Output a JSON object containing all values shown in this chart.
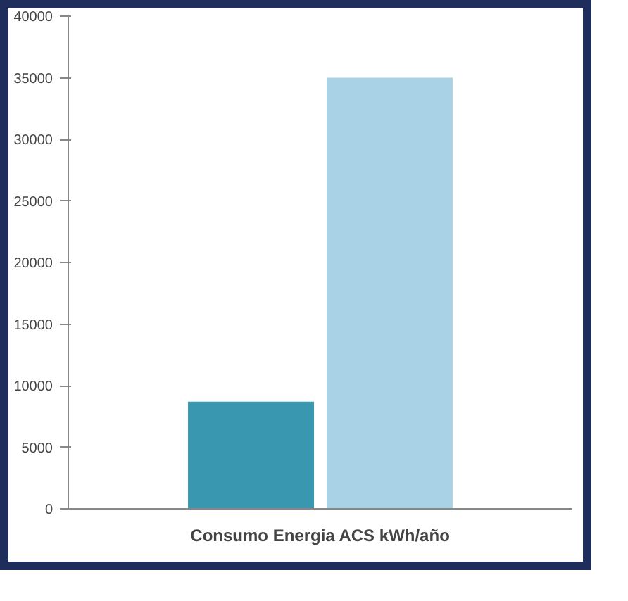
{
  "chart_data": {
    "type": "bar",
    "categories": [
      "Consumo Energia ACS kWh/año"
    ],
    "series": [
      {
        "color": "#3a97b0",
        "values": [
          8700
        ]
      },
      {
        "color": "#a9d2e6",
        "values": [
          35000
        ]
      }
    ],
    "ylim": [
      0,
      40000
    ],
    "yticks": [
      0,
      5000,
      10000,
      15000,
      20000,
      25000,
      30000,
      35000,
      40000
    ],
    "grid": false
  }
}
